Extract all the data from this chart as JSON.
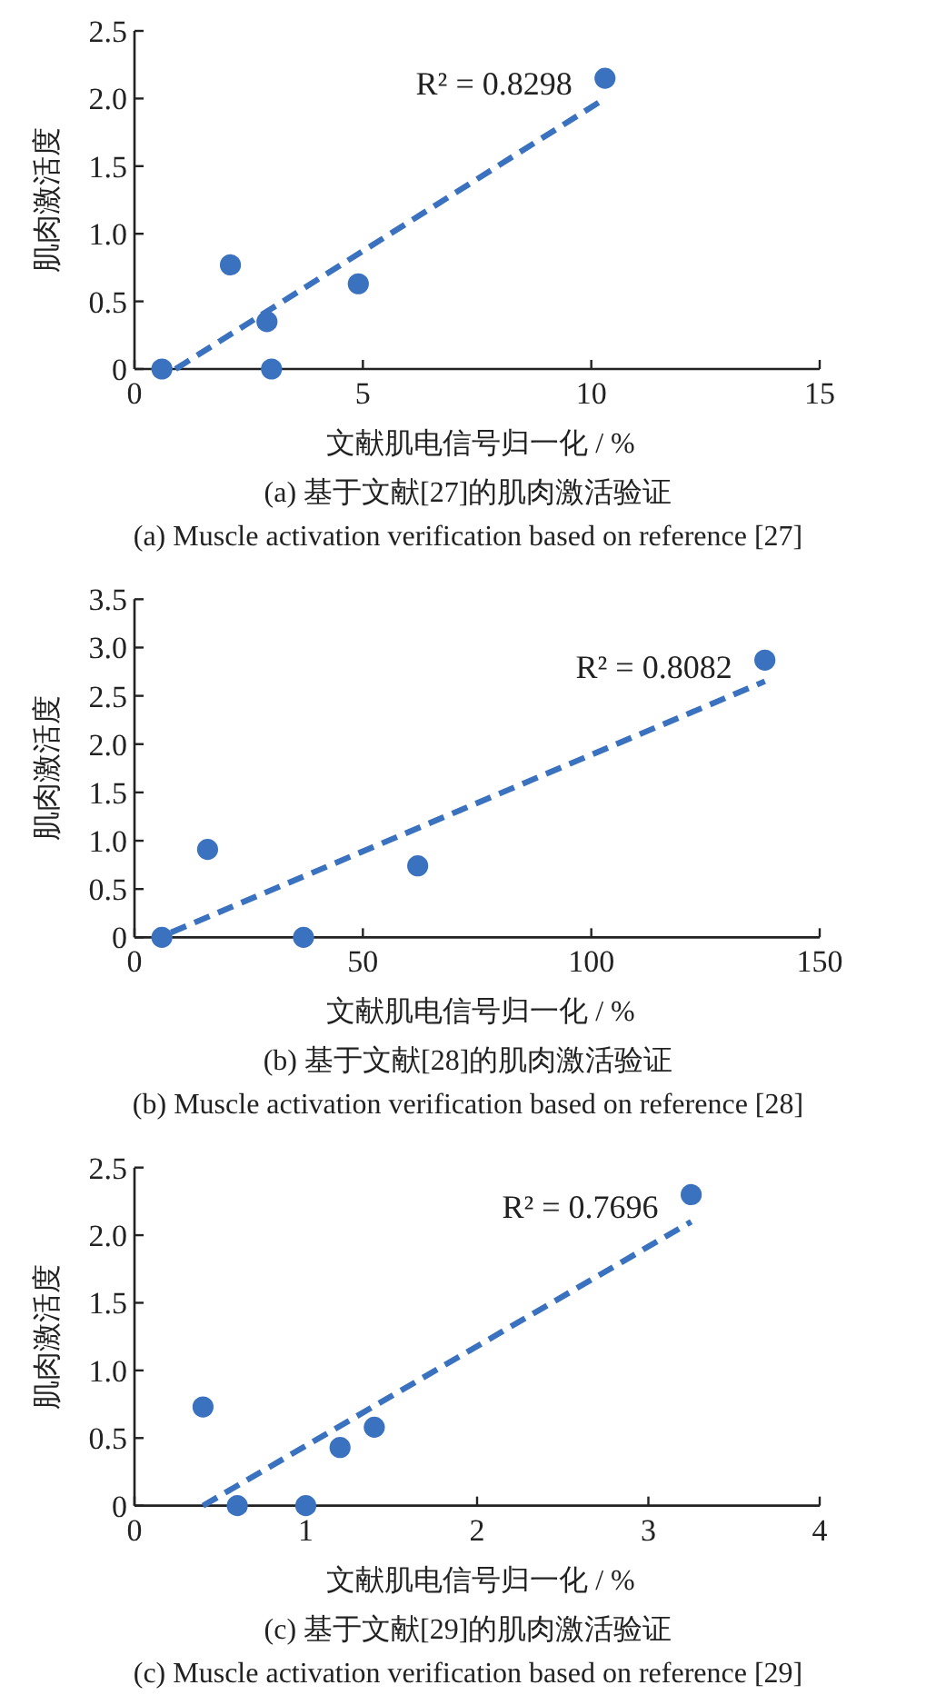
{
  "chart_data": [
    {
      "type": "scatter",
      "title": "(a) 基于文献[27]的肌肉激活验证",
      "subtitle": "(a) Muscle activation verification based on reference [27]",
      "xlabel": "文献肌电信号归一化 / %",
      "ylabel": "肌肉激活度",
      "annotations": [
        "R² = 0.8298"
      ],
      "marker": "circle",
      "xlim": [
        0,
        15
      ],
      "xticks": [
        0,
        5,
        10,
        15
      ],
      "ylim": [
        0,
        2.5
      ],
      "yticks": [
        0,
        0.5,
        {
          "value": 1,
          "label": "1.0"
        },
        1.5,
        {
          "value": 2,
          "label": "2.0"
        },
        2.5
      ],
      "series": [
        {
          "type": "scatter",
          "color": "#3a72c0",
          "x": [
            0.6,
            2.1,
            2.9,
            3.0,
            4.9,
            10.3
          ],
          "values": [
            0,
            0.77,
            0.35,
            0,
            0.63,
            2.15
          ]
        },
        {
          "type": "line",
          "color": "#3a72c0",
          "line_style": "dashed",
          "marker": "none",
          "x": [
            0.9,
            10.3
          ],
          "values": [
            0,
            2.0
          ]
        }
      ]
    },
    {
      "type": "scatter",
      "title": "(b) 基于文献[28]的肌肉激活验证",
      "subtitle": "(b) Muscle activation verification based on reference [28]",
      "xlabel": "文献肌电信号归一化 / %",
      "ylabel": "肌肉激活度",
      "annotations": [
        "R² = 0.8082"
      ],
      "marker": "circle",
      "xlim": [
        0,
        150
      ],
      "xticks": [
        0,
        50,
        100,
        150
      ],
      "ylim": [
        0,
        3.5
      ],
      "yticks": [
        0,
        0.5,
        {
          "value": 1,
          "label": "1.0"
        },
        1.5,
        {
          "value": 2,
          "label": "2.0"
        },
        2.5,
        {
          "value": 3,
          "label": "3.0"
        },
        3.5
      ],
      "series": [
        {
          "type": "scatter",
          "color": "#3a72c0",
          "x": [
            6,
            16,
            37,
            62,
            138
          ],
          "values": [
            0,
            0.91,
            0,
            0.74,
            2.87
          ]
        },
        {
          "type": "line",
          "color": "#3a72c0",
          "line_style": "dashed",
          "marker": "none",
          "x": [
            8,
            138
          ],
          "values": [
            0.05,
            2.65
          ]
        }
      ]
    },
    {
      "type": "scatter",
      "title": "(c) 基于文献[29]的肌肉激活验证",
      "subtitle": "(c) Muscle activation verification based on reference [29]",
      "xlabel": "文献肌电信号归一化 / %",
      "ylabel": "肌肉激活度",
      "annotations": [
        "R² = 0.7696"
      ],
      "marker": "circle",
      "xlim": [
        0,
        4
      ],
      "xticks": [
        0,
        1,
        2,
        3,
        4
      ],
      "ylim": [
        0,
        2.5
      ],
      "yticks": [
        0,
        0.5,
        {
          "value": 1,
          "label": "1.0"
        },
        1.5,
        {
          "value": 2,
          "label": "2.0"
        },
        2.5
      ],
      "series": [
        {
          "type": "scatter",
          "color": "#3a72c0",
          "x": [
            0.4,
            0.6,
            1.0,
            1.2,
            1.4,
            3.25
          ],
          "values": [
            0.73,
            0,
            0,
            0.43,
            0.58,
            2.3
          ]
        },
        {
          "type": "line",
          "color": "#3a72c0",
          "line_style": "dashed",
          "marker": "none",
          "x": [
            0.4,
            3.25
          ],
          "values": [
            0,
            2.1
          ]
        }
      ]
    }
  ]
}
